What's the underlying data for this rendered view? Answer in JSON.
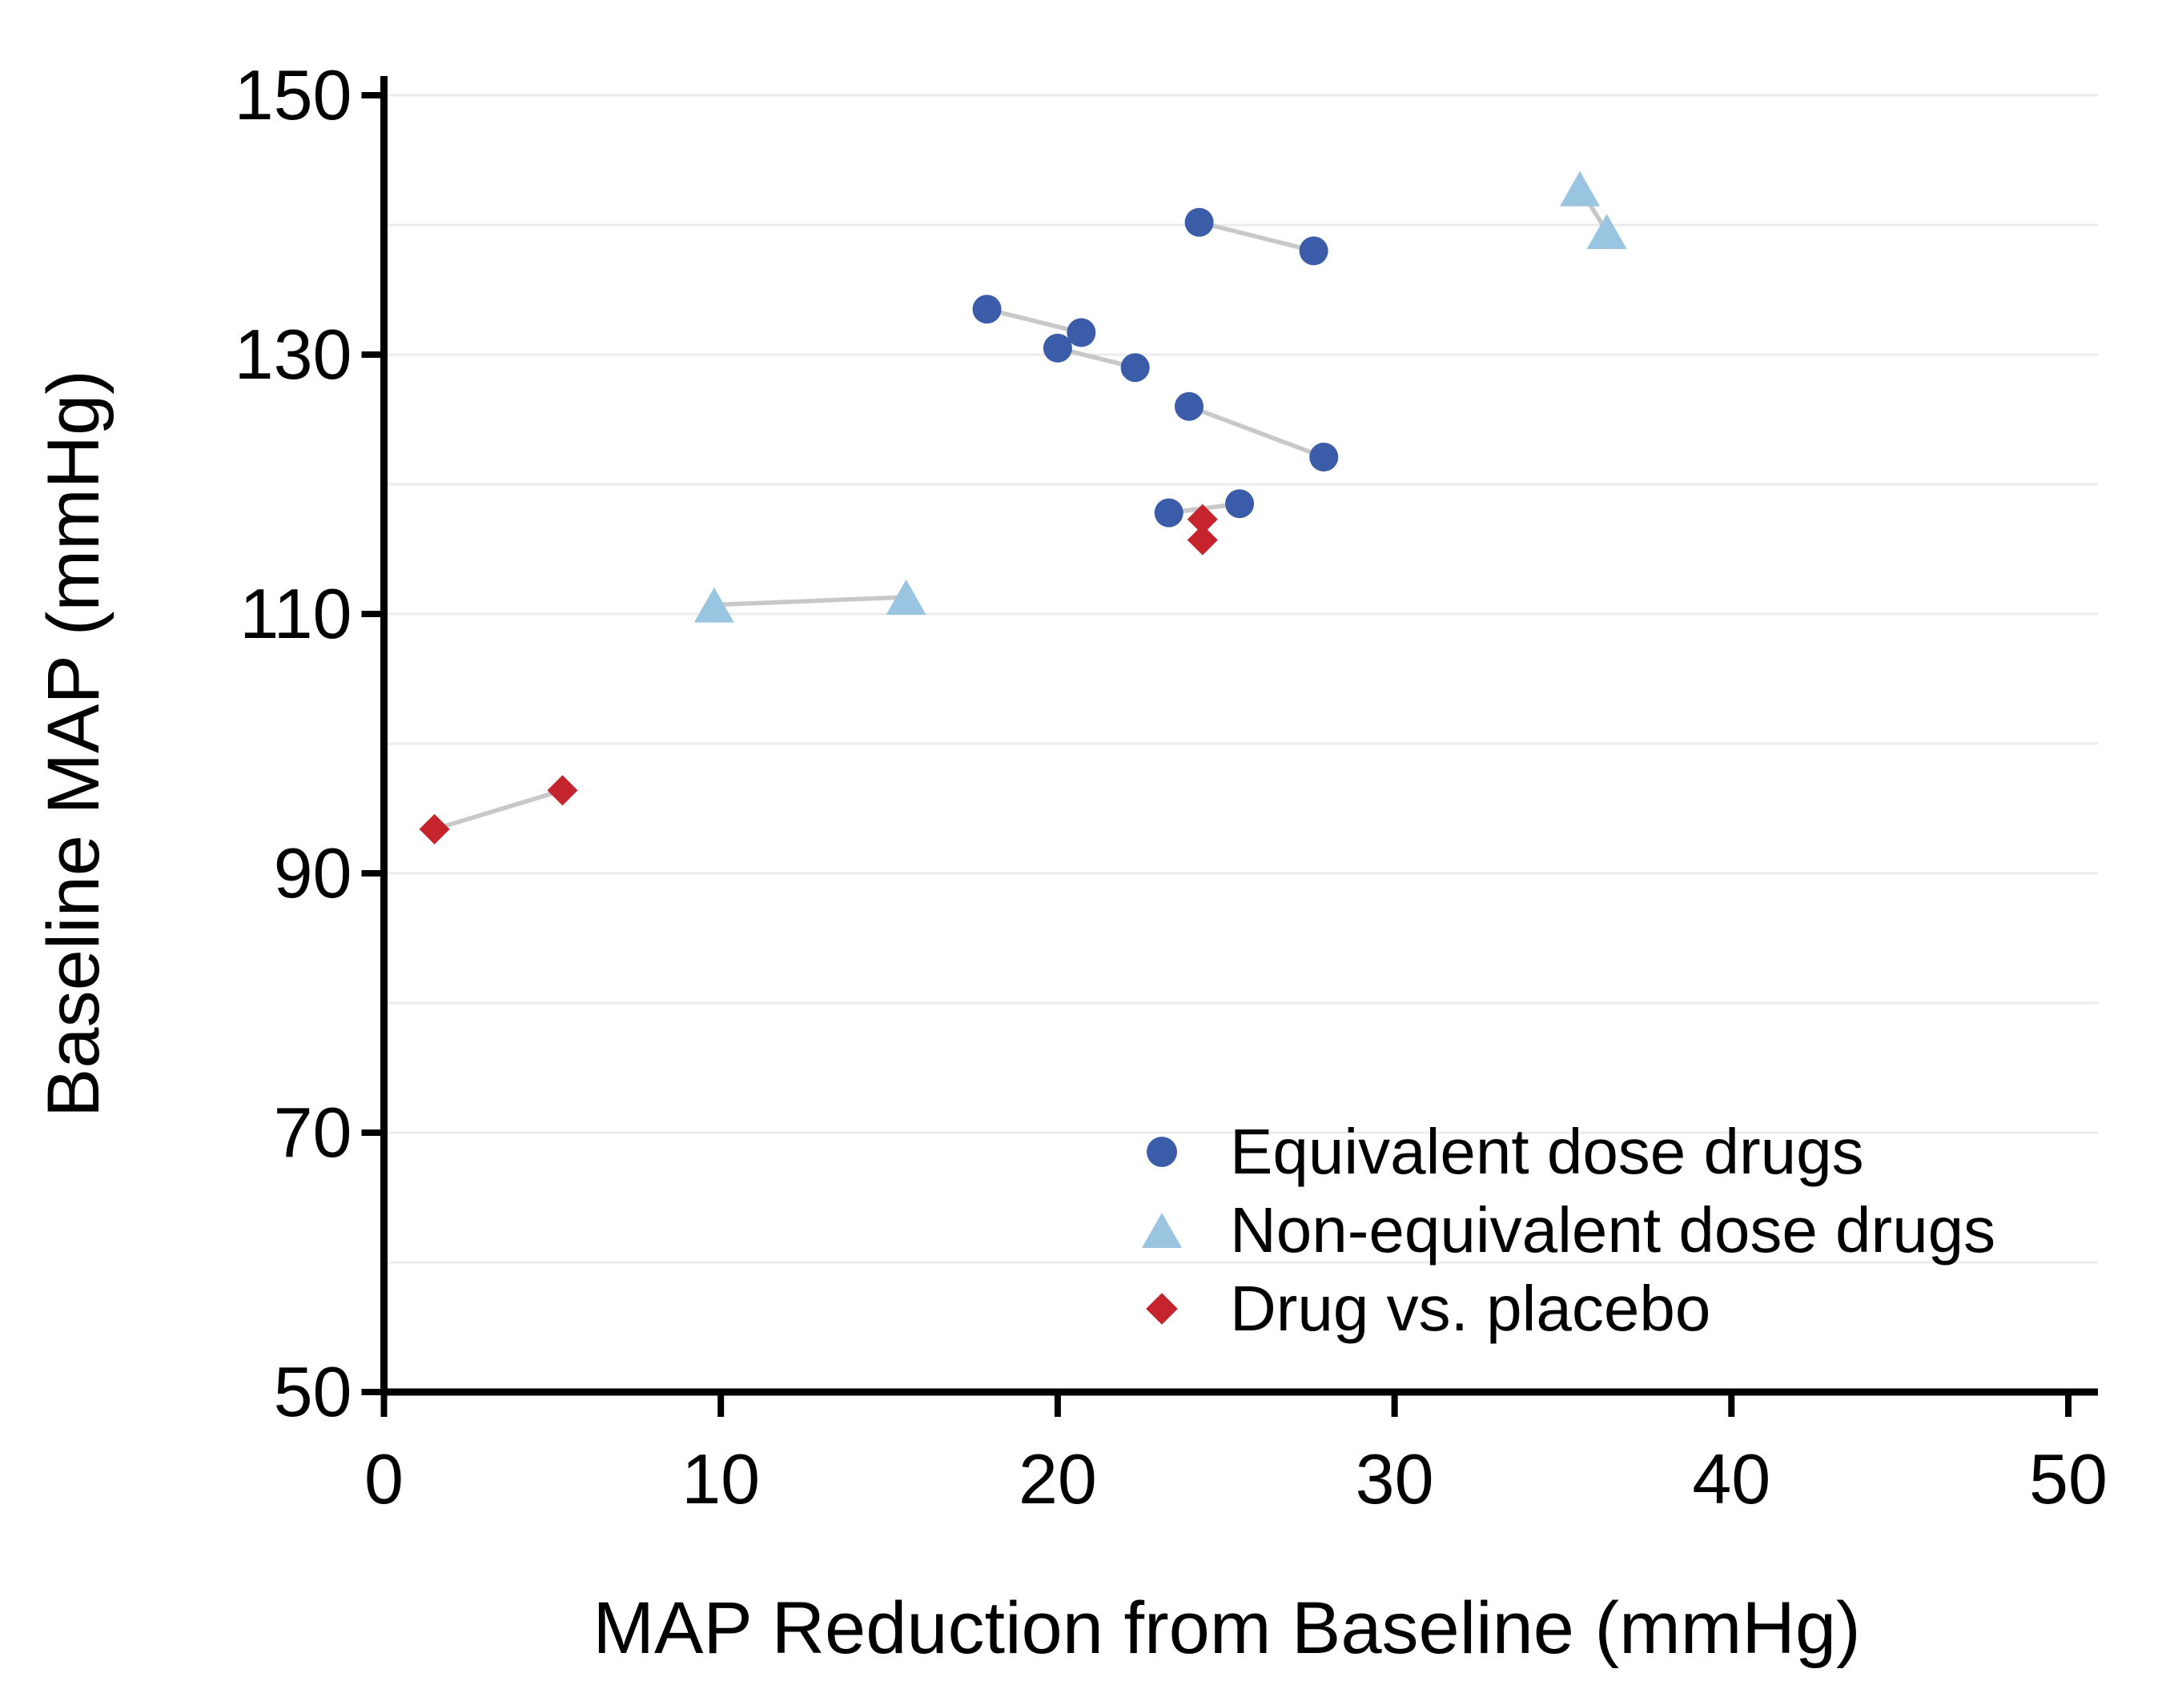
{
  "figure": {
    "background_color": "#ffffff",
    "text_color": "#000000"
  },
  "chart_data": {
    "type": "scatter",
    "title": "",
    "xlabel": "MAP Reduction from Baseline (mmHg)",
    "ylabel": "Baseline MAP (mmHg)",
    "xlim": [
      0,
      50
    ],
    "ylim": [
      50,
      150
    ],
    "x_ticks": [
      0,
      10,
      20,
      30,
      40,
      50
    ],
    "y_ticks": [
      150,
      130,
      110,
      90,
      70,
      50
    ],
    "y_gridlines": [
      60,
      70,
      80,
      90,
      100,
      110,
      120,
      130,
      140,
      150
    ],
    "grid_on": true,
    "legend_position": "inside lower right",
    "gridline_color": "#ebebeb",
    "connector_color": "#c8c8c8",
    "axis_color": "#000000",
    "series": [
      {
        "name": "Equivalent dose drugs",
        "marker": "circle",
        "color": "#3b5ca8",
        "pairs": [
          [
            [
              24.2,
              140.2
            ],
            [
              27.6,
              138.0
            ]
          ],
          [
            [
              20.0,
              130.5
            ],
            [
              22.3,
              129.0
            ]
          ],
          [
            [
              17.9,
              133.5
            ],
            [
              20.7,
              131.7
            ]
          ],
          [
            [
              23.9,
              126.0
            ],
            [
              27.9,
              122.1
            ]
          ],
          [
            [
              23.3,
              117.8
            ],
            [
              25.4,
              118.5
            ]
          ]
        ]
      },
      {
        "name": "Non-equivalent dose drugs",
        "marker": "triangle",
        "color": "#9ac5e1",
        "pairs": [
          [
            [
              35.5,
              142.8
            ],
            [
              36.3,
              139.5
            ]
          ],
          [
            [
              9.8,
              110.7
            ],
            [
              15.5,
              111.3
            ]
          ]
        ]
      },
      {
        "name": "Drug vs. placebo",
        "marker": "diamond",
        "color": "#c5242c",
        "pairs": [
          [
            [
              24.3,
              117.3
            ],
            [
              24.3,
              115.7
            ]
          ],
          [
            [
              1.5,
              93.4
            ],
            [
              5.3,
              96.4
            ]
          ]
        ]
      }
    ]
  }
}
